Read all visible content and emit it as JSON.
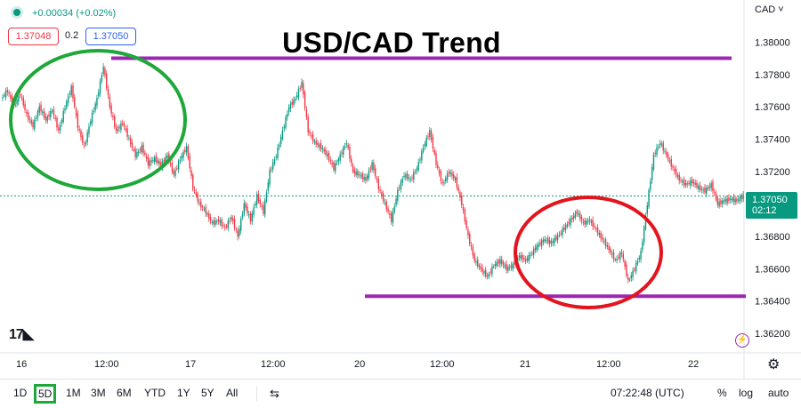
{
  "header": {
    "change_text": "+0.00034 (+0.02%)",
    "bid": "1.37048",
    "spread": "0.2",
    "ask": "1.37050",
    "currency": "CAD ˅"
  },
  "title": "USD/CAD Trend",
  "price_badge": {
    "price": "1.37050",
    "countdown": "02:12"
  },
  "logo_text": "17",
  "toolbar": {
    "ranges": [
      "1D",
      "5D",
      "1M",
      "3M",
      "6M",
      "YTD",
      "1Y",
      "5Y",
      "All"
    ],
    "active_range": "5D",
    "time": "07:22:48 (UTC)",
    "percent_label": "%",
    "log_label": "log",
    "auto_label": "auto"
  },
  "colors": {
    "up": "#089981",
    "down": "#f23645",
    "line": "#9c27b0",
    "circle_green": "#1fa83a",
    "circle_red": "#e3141c"
  },
  "chart_data": {
    "type": "line",
    "title": "USD/CAD Trend",
    "xlabel": "",
    "ylabel": "",
    "x_ticks": [
      "16",
      "12:00",
      "17",
      "12:00",
      "20",
      "12:00",
      "21",
      "12:00",
      "22"
    ],
    "y_ticks": [
      "1.38000",
      "1.37800",
      "1.37600",
      "1.37400",
      "1.37200",
      "1.37000",
      "1.36800",
      "1.36600",
      "1.36400",
      "1.36200"
    ],
    "ylim": [
      1.3608,
      1.3826
    ],
    "series": [
      {
        "values": [
          1.3765,
          1.377,
          1.376,
          1.3768,
          1.3755,
          1.3748,
          1.376,
          1.3752,
          1.3758,
          1.3745,
          1.376,
          1.3772,
          1.3748,
          1.3735,
          1.3752,
          1.3765,
          1.3785,
          1.376,
          1.3745,
          1.375,
          1.374,
          1.373,
          1.3735,
          1.3725,
          1.3728,
          1.3724,
          1.373,
          1.3718,
          1.3728,
          1.3735,
          1.371,
          1.37,
          1.3695,
          1.3688,
          1.369,
          1.3685,
          1.3692,
          1.368,
          1.37,
          1.369,
          1.3705,
          1.3695,
          1.372,
          1.373,
          1.3745,
          1.376,
          1.3765,
          1.3775,
          1.3745,
          1.3738,
          1.3735,
          1.373,
          1.3722,
          1.373,
          1.3738,
          1.372,
          1.3718,
          1.3715,
          1.3725,
          1.371,
          1.37,
          1.369,
          1.3708,
          1.3718,
          1.3715,
          1.3722,
          1.3735,
          1.3745,
          1.3725,
          1.3712,
          1.372,
          1.3715,
          1.37,
          1.368,
          1.3665,
          1.366,
          1.3655,
          1.3662,
          1.3665,
          1.366,
          1.3662,
          1.3668,
          1.3665,
          1.367,
          1.3675,
          1.3678,
          1.3676,
          1.368,
          1.3685,
          1.369,
          1.3695,
          1.3688,
          1.369,
          1.3684,
          1.3678,
          1.3672,
          1.3665,
          1.367,
          1.3652,
          1.366,
          1.367,
          1.37,
          1.373,
          1.3738,
          1.373,
          1.3722,
          1.3715,
          1.3712,
          1.3714,
          1.371,
          1.3708,
          1.3712,
          1.37,
          1.3702,
          1.3703,
          1.3702,
          1.3705
        ]
      }
    ],
    "annotations": {
      "resistance": 1.379,
      "support": 1.3643
    },
    "current_price": 1.3705,
    "grid": false,
    "legend": "none"
  }
}
